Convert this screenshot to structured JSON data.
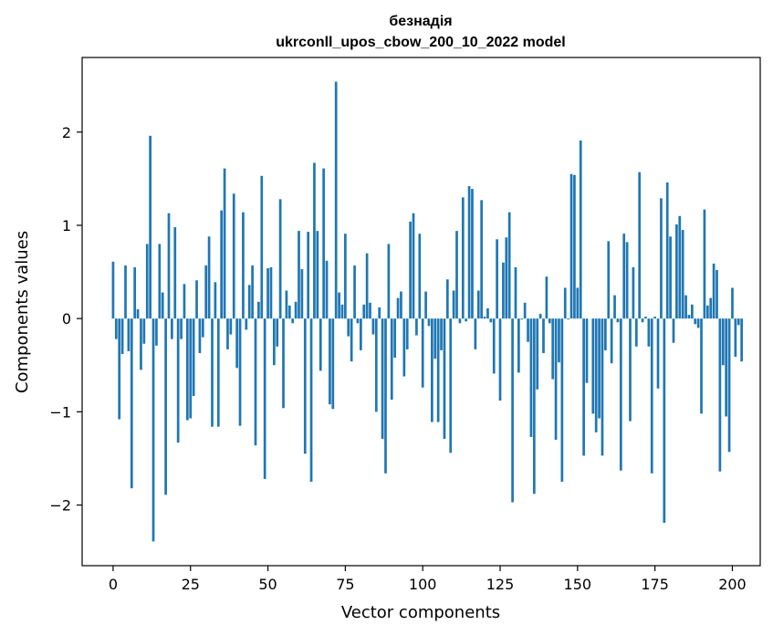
{
  "chart_data": {
    "type": "bar",
    "title_line1": "безнадія",
    "title_line2": "ukrconll_upos_cbow_200_10_2022 model",
    "xlabel": "Vector components",
    "ylabel": "Components values",
    "xlim": [
      -10,
      209
    ],
    "ylim": [
      -2.65,
      2.8
    ],
    "xticks": [
      0,
      25,
      50,
      75,
      100,
      125,
      150,
      175,
      200
    ],
    "yticks": [
      -2,
      -1,
      0,
      1,
      2
    ],
    "ytick_labels": [
      "−2",
      "−1",
      "0",
      "1",
      "2"
    ],
    "bar_color": "#1f77b4",
    "values": [
      0.61,
      -0.22,
      -1.08,
      -0.38,
      0.57,
      -0.35,
      -1.82,
      0.55,
      0.1,
      -0.55,
      -0.27,
      0.8,
      1.96,
      -2.39,
      -0.29,
      0.8,
      0.28,
      -1.89,
      1.13,
      -0.22,
      0.98,
      -1.33,
      -0.22,
      0.37,
      -1.09,
      -1.07,
      -0.83,
      0.41,
      -0.37,
      -0.2,
      0.57,
      0.88,
      -1.16,
      0.39,
      -1.16,
      1.16,
      1.61,
      -0.33,
      -0.17,
      1.34,
      -0.53,
      -1.15,
      1.14,
      -0.12,
      0.36,
      0.57,
      -1.36,
      0.18,
      1.53,
      -1.72,
      0.54,
      0.55,
      -0.5,
      -0.3,
      1.28,
      -0.96,
      0.3,
      0.14,
      -0.05,
      0.18,
      0.94,
      0.53,
      -1.45,
      0.93,
      -1.75,
      1.67,
      0.94,
      -0.56,
      1.61,
      0.62,
      -0.92,
      -0.97,
      2.54,
      0.28,
      0.15,
      0.91,
      -0.19,
      -0.46,
      0.57,
      -0.05,
      -0.34,
      0.15,
      0.7,
      0.17,
      -0.17,
      -1.0,
      0.12,
      -1.29,
      -1.66,
      0.8,
      -0.87,
      -0.42,
      0.22,
      0.29,
      -0.62,
      -0.33,
      1.04,
      1.13,
      -0.18,
      0.91,
      -0.74,
      0.29,
      -0.08,
      -1.11,
      -0.43,
      -1.11,
      -0.34,
      -1.29,
      0.42,
      -1.44,
      0.3,
      0.94,
      -0.05,
      1.3,
      -0.03,
      1.42,
      1.39,
      -0.33,
      0.3,
      1.27,
      0.02,
      0.11,
      -0.04,
      -0.59,
      0.85,
      -0.88,
      0.6,
      0.87,
      1.14,
      -1.97,
      0.55,
      -0.58,
      -0.01,
      0.17,
      -0.25,
      -1.27,
      -1.88,
      -0.76,
      0.05,
      -0.37,
      0.45,
      -0.05,
      -0.65,
      -1.3,
      -0.47,
      -1.75,
      0.33,
      -0.01,
      1.55,
      1.54,
      0.33,
      1.91,
      -1.47,
      -0.69,
      0.0,
      -1.02,
      -1.22,
      -1.07,
      -1.47,
      -0.34,
      0.83,
      -0.48,
      0.25,
      -0.04,
      -1.63,
      0.91,
      0.82,
      -1.1,
      0.55,
      -0.3,
      1.57,
      -0.04,
      0.02,
      -0.3,
      -1.66,
      0.02,
      -0.75,
      1.29,
      -2.19,
      1.46,
      0.88,
      -0.26,
      1.01,
      1.1,
      0.95,
      0.25,
      0.04,
      0.15,
      -0.06,
      -0.1,
      -1.02,
      1.17,
      0.14,
      0.22,
      0.59,
      0.52,
      -1.64,
      -0.5,
      -1.05,
      -1.43,
      0.33,
      -0.41,
      -0.07,
      -0.46
    ]
  }
}
